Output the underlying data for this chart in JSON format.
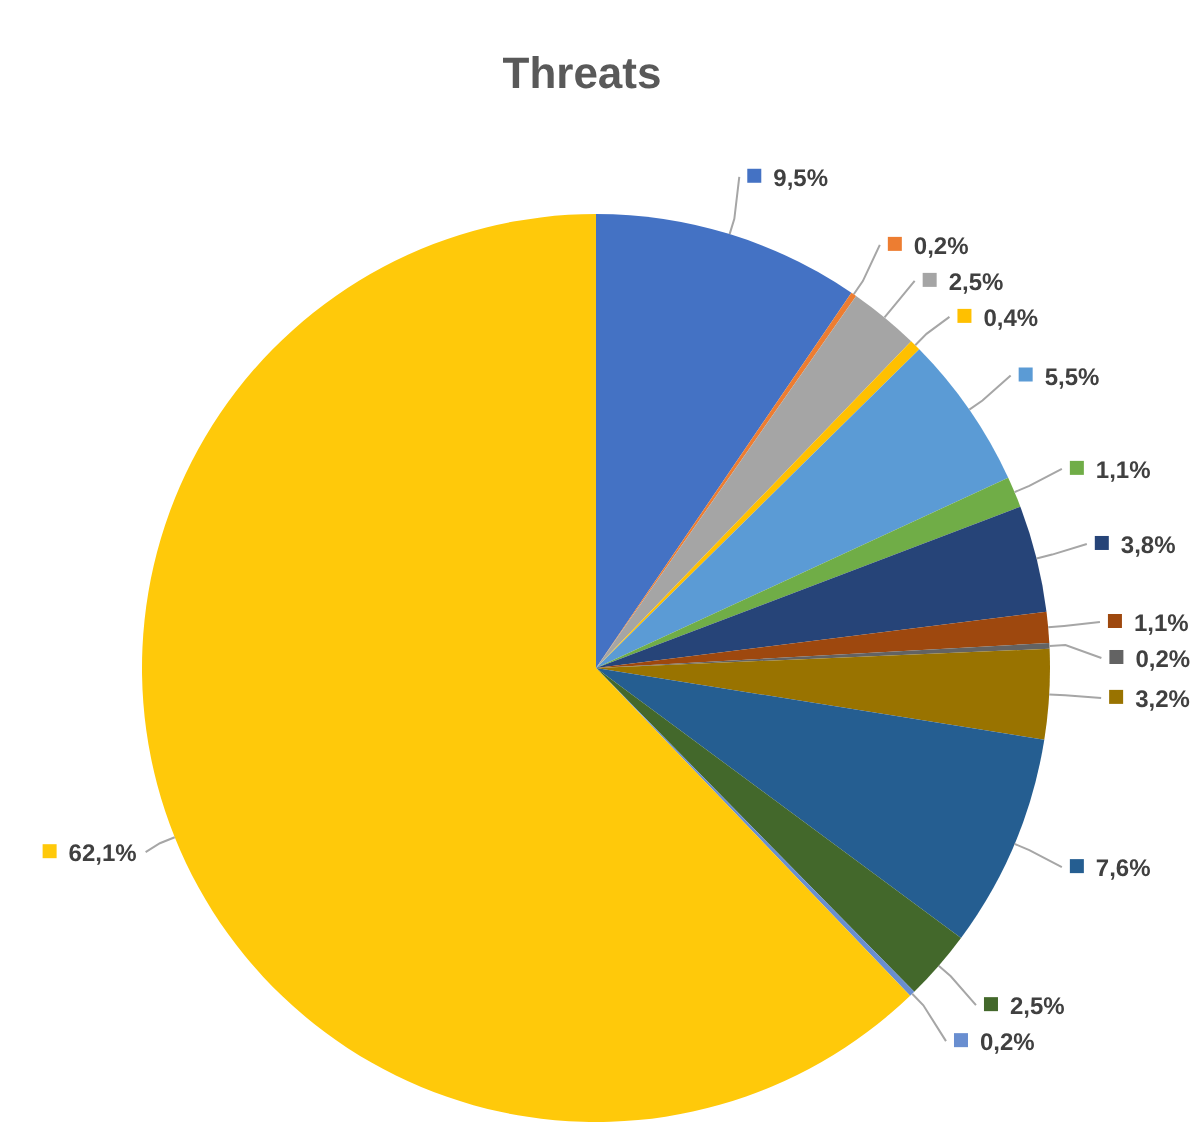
{
  "chart_data": {
    "type": "pie",
    "title": "Threats",
    "categories": [
      null,
      null,
      null,
      null,
      null,
      null,
      null,
      null,
      null,
      null,
      null,
      null,
      null,
      null
    ],
    "values": [
      9.5,
      0.2,
      2.5,
      0.4,
      5.5,
      1.1,
      3.8,
      1.1,
      0.2,
      3.2,
      7.6,
      2.5,
      0.2,
      62.1
    ],
    "colors": [
      "#4472c4",
      "#ed7d31",
      "#a5a5a5",
      "#ffc000",
      "#5b9bd5",
      "#70ad47",
      "#264478",
      "#9e480e",
      "#636363",
      "#997300",
      "#255e91",
      "#43682b",
      "#698ed0",
      "#ffc90a"
    ],
    "value_labels": [
      "9,5%",
      "0,2%",
      "2,5%",
      "0,4%",
      "5,5%",
      "1,1%",
      "3,8%",
      "1,1%",
      "0,2%",
      "3,2%",
      "7,6%",
      "2,5%",
      "0,2%",
      "62,1%"
    ]
  }
}
